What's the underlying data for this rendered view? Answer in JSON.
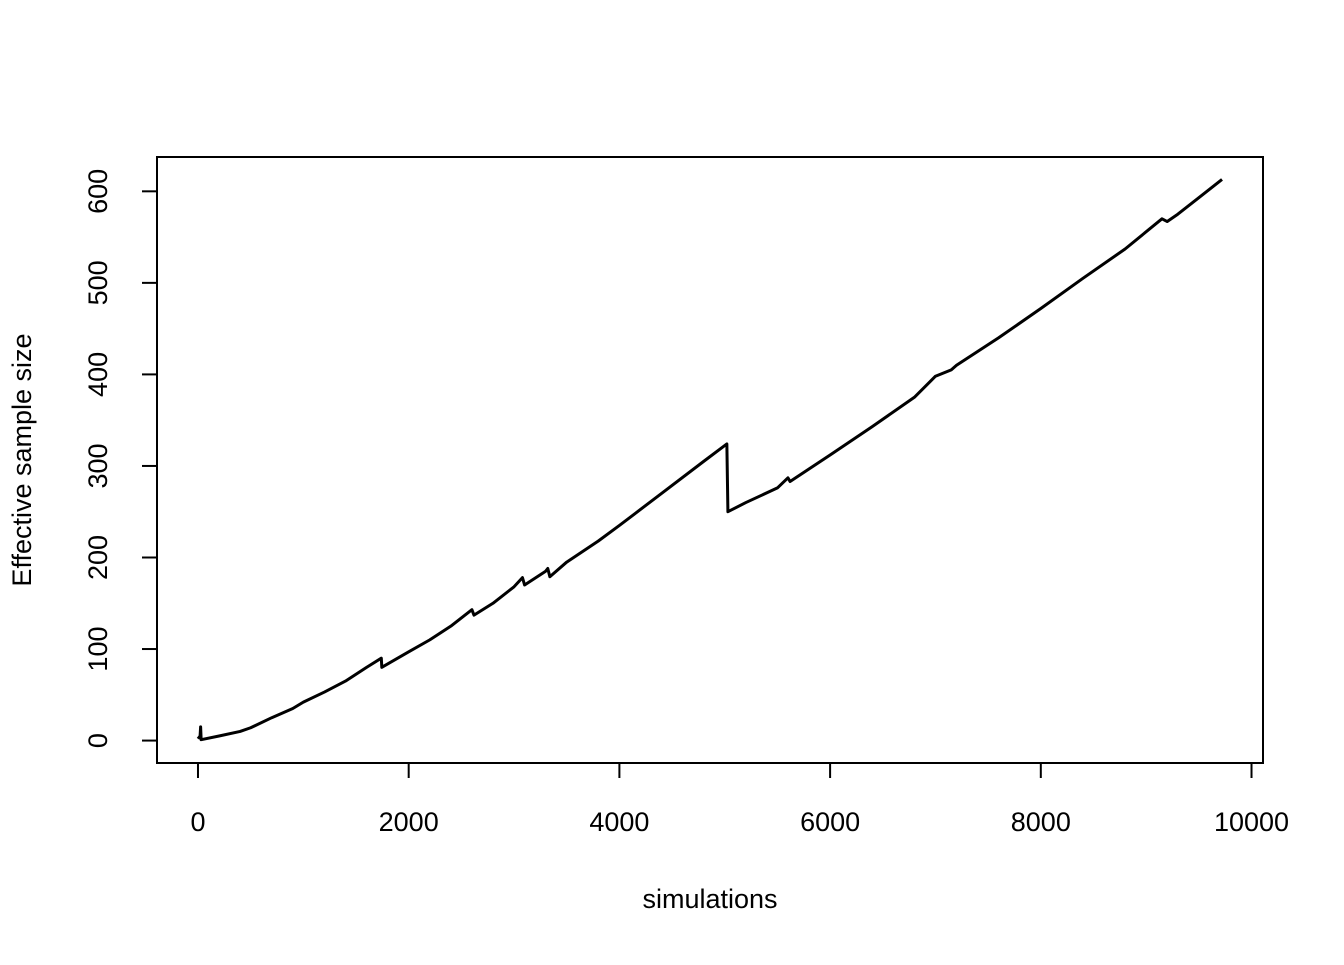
{
  "chart_data": {
    "type": "line",
    "x_label": "simulations",
    "y_label": "Effective sample size",
    "x": [
      0,
      20,
      25,
      30,
      200,
      400,
      500,
      700,
      900,
      1000,
      1200,
      1400,
      1600,
      1740,
      1745,
      2000,
      2200,
      2400,
      2600,
      2620,
      2800,
      3000,
      3080,
      3100,
      3300,
      3320,
      3340,
      3500,
      3800,
      4000,
      4400,
      4800,
      5020,
      5030,
      5200,
      5500,
      5600,
      5620,
      6000,
      6400,
      6800,
      7000,
      7150,
      7200,
      7600,
      8000,
      8400,
      8800,
      9150,
      9200,
      9300,
      9500,
      9720
    ],
    "values": [
      2,
      5,
      15,
      1,
      5,
      10,
      14,
      25,
      35,
      42,
      53,
      65,
      80,
      90,
      80,
      97,
      110,
      125,
      143,
      137,
      150,
      168,
      178,
      170,
      185,
      188,
      179,
      195,
      218,
      235,
      270,
      305,
      324,
      250,
      260,
      276,
      287,
      283,
      312,
      343,
      375,
      398,
      405,
      410,
      440,
      472,
      505,
      537,
      570,
      567,
      575,
      593,
      613
    ],
    "color": "#000000",
    "xlim": [
      -389,
      10109
    ],
    "ylim": [
      -24.5,
      637.5
    ],
    "xticks": [
      0,
      2000,
      4000,
      6000,
      8000,
      10000
    ],
    "yticks": [
      0,
      100,
      200,
      300,
      400,
      500,
      600
    ]
  }
}
